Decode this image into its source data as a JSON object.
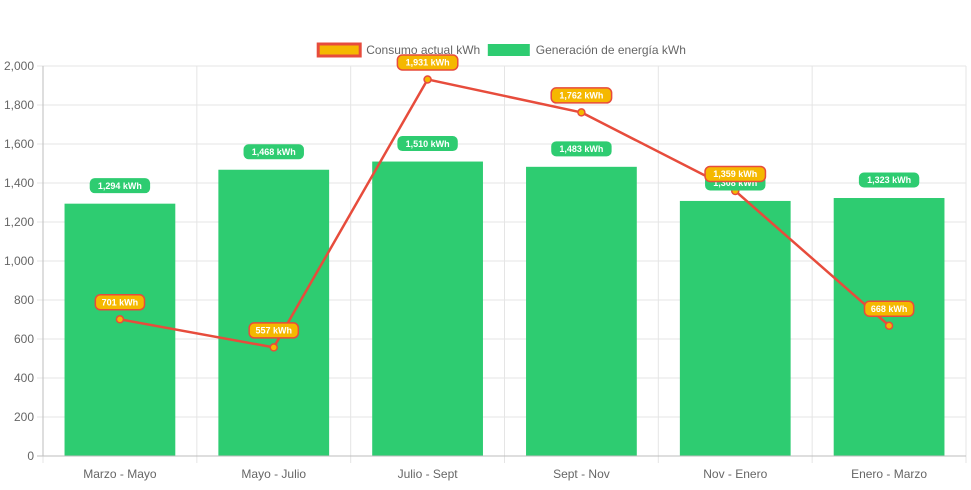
{
  "chart_data": {
    "type": "bar",
    "categories": [
      "Marzo - Mayo",
      "Mayo - Julio",
      "Julio - Sept",
      "Sept - Nov",
      "Nov - Enero",
      "Enero - Marzo"
    ],
    "series": [
      {
        "name": "Consumo actual kWh",
        "render": "line",
        "values": [
          701,
          557,
          1931,
          1762,
          1359,
          668
        ],
        "labels": [
          "701 kWh",
          "557 kWh",
          "1,931 kWh",
          "1,762 kWh",
          "1,359 kWh",
          "668 kWh"
        ],
        "color": "#e74c3c",
        "fill": "#f5b800"
      },
      {
        "name": "Generación de energía kWh",
        "render": "bar",
        "values": [
          1294,
          1468,
          1510,
          1483,
          1308,
          1323
        ],
        "labels": [
          "1,294 kWh",
          "1,468 kWh",
          "1,510 kWh",
          "1,483 kWh",
          "1,308 kWh",
          "1,323 kWh"
        ],
        "color": "#2ecc71"
      }
    ],
    "ylim": [
      0,
      2000
    ],
    "yticks": [
      "0",
      "200",
      "400",
      "600",
      "800",
      "1,000",
      "1,200",
      "1,400",
      "1,600",
      "1,800",
      "2,000"
    ],
    "grid": true,
    "legend": "top-center"
  }
}
